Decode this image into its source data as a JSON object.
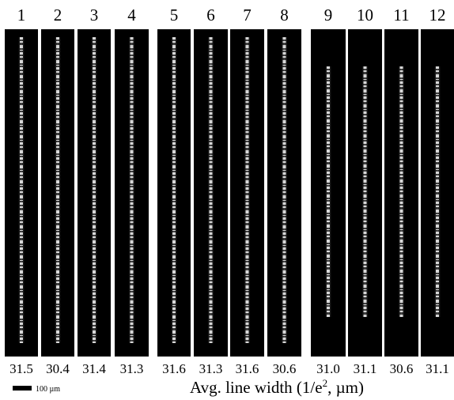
{
  "panels": [
    {
      "label": "1",
      "width": "31.5"
    },
    {
      "label": "2",
      "width": "30.4"
    },
    {
      "label": "3",
      "width": "31.4"
    },
    {
      "label": "4",
      "width": "31.3"
    },
    {
      "label": "5",
      "width": "31.6"
    },
    {
      "label": "6",
      "width": "31.3"
    },
    {
      "label": "7",
      "width": "31.6"
    },
    {
      "label": "8",
      "width": "30.6"
    },
    {
      "label": "9",
      "width": "31.0"
    },
    {
      "label": "10",
      "width": "31.1"
    },
    {
      "label": "11",
      "width": "30.6"
    },
    {
      "label": "12",
      "width": "31.1"
    }
  ],
  "scale_bar": "100 µm",
  "caption": {
    "text": "Avg. line width (1/e",
    "superscript": "2",
    "suffix": ", µm)"
  }
}
